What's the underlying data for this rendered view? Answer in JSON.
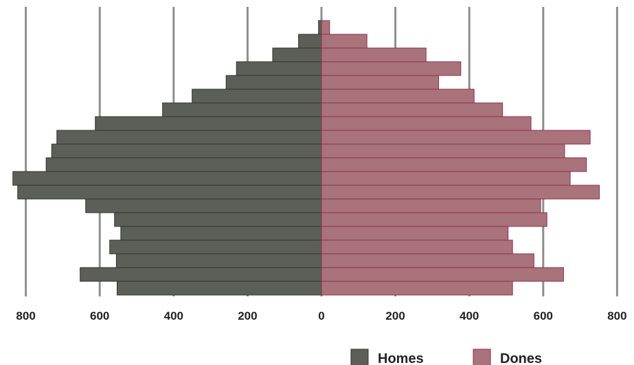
{
  "chart_data": {
    "type": "bar",
    "orientation": "horizontal",
    "layout": "population-pyramid",
    "title": "",
    "xlabel": "",
    "ylabel": "",
    "xlim": [
      -800,
      800
    ],
    "x_ticks": [
      -800,
      -600,
      -400,
      -200,
      0,
      200,
      400,
      600,
      800
    ],
    "x_tick_labels": [
      "800",
      "600",
      "400",
      "200",
      "0",
      "200",
      "400",
      "600",
      "800"
    ],
    "grid": "vertical gridlines at ticks",
    "legend_position": "bottom-right",
    "series": [
      {
        "name": "Homes",
        "color": "#5c5f58",
        "side": "left",
        "values": [
          8,
          62,
          132,
          230,
          258,
          350,
          430,
          612,
          716,
          730,
          745,
          835,
          822,
          638,
          560,
          543,
          573,
          555,
          653,
          553
        ]
      },
      {
        "name": "Dones",
        "color": "#a8737b",
        "side": "right",
        "values": [
          22,
          123,
          283,
          377,
          317,
          413,
          490,
          567,
          727,
          658,
          717,
          673,
          752,
          593,
          610,
          505,
          517,
          575,
          655,
          517
        ]
      }
    ]
  },
  "colors": {
    "gridline": "#8c908c",
    "homes_stroke": "#2f322e",
    "dones_stroke": "#8e2e48"
  }
}
